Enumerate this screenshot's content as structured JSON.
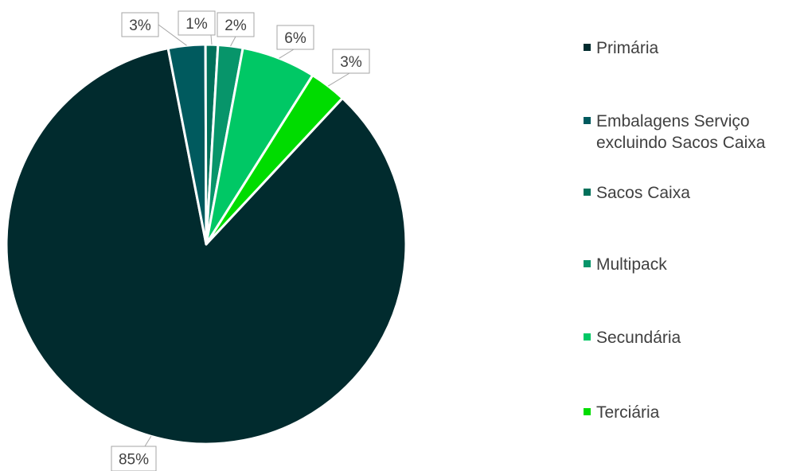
{
  "chart_data": {
    "type": "pie",
    "categories": [
      "Primária",
      "Embalagens Serviço excluindo Sacos Caixa",
      "Sacos Caixa",
      "Multipack",
      "Secundária",
      "Terciária"
    ],
    "values": [
      85,
      3,
      1,
      2,
      6,
      3
    ],
    "data_labels": [
      "85%",
      "3%",
      "1%",
      "2%",
      "6%",
      "3%"
    ],
    "colors": [
      "#012b2e",
      "#005a5e",
      "#00705a",
      "#07956a",
      "#00c865",
      "#00dc00"
    ],
    "legend_lines": [
      [
        "Primária"
      ],
      [
        "Embalagens Serviço",
        "excluindo Sacos Caixa"
      ],
      [
        "Sacos Caixa"
      ],
      [
        "Multipack"
      ],
      [
        "Secundária"
      ],
      [
        "Terciária"
      ]
    ],
    "legend_position": "right",
    "title": "",
    "start_angle_deg": 43
  }
}
